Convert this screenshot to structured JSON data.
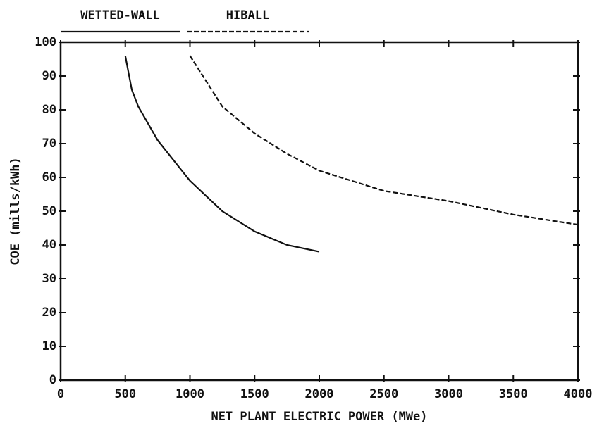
{
  "chart_data": {
    "type": "line",
    "x_label": "NET PLANT ELECTRIC POWER (MWe)",
    "y_label": "COE (mills/kWh)",
    "xlim": [
      0,
      4000
    ],
    "xticks": [
      0,
      500,
      1000,
      1500,
      2000,
      2500,
      3000,
      3500,
      4000
    ],
    "ylim": [
      0,
      100
    ],
    "yticks": [
      0,
      10,
      20,
      30,
      40,
      50,
      60,
      70,
      80,
      90,
      100
    ],
    "legend": "top",
    "series": [
      {
        "name": "WETTED-WALL",
        "color": "#111111",
        "style": "solid",
        "x": [
          500,
          550,
          600,
          750,
          1000,
          1250,
          1500,
          1750,
          2000
        ],
        "values": [
          96,
          86,
          81,
          71,
          59,
          50,
          44,
          40,
          38
        ]
      },
      {
        "name": "HIBALL",
        "color": "#111111",
        "style": "dashed",
        "x": [
          1000,
          1250,
          1500,
          1750,
          2000,
          2500,
          3000,
          3500,
          4000
        ],
        "values": [
          96,
          81,
          73,
          67,
          62,
          56,
          53,
          49,
          46
        ]
      }
    ]
  }
}
